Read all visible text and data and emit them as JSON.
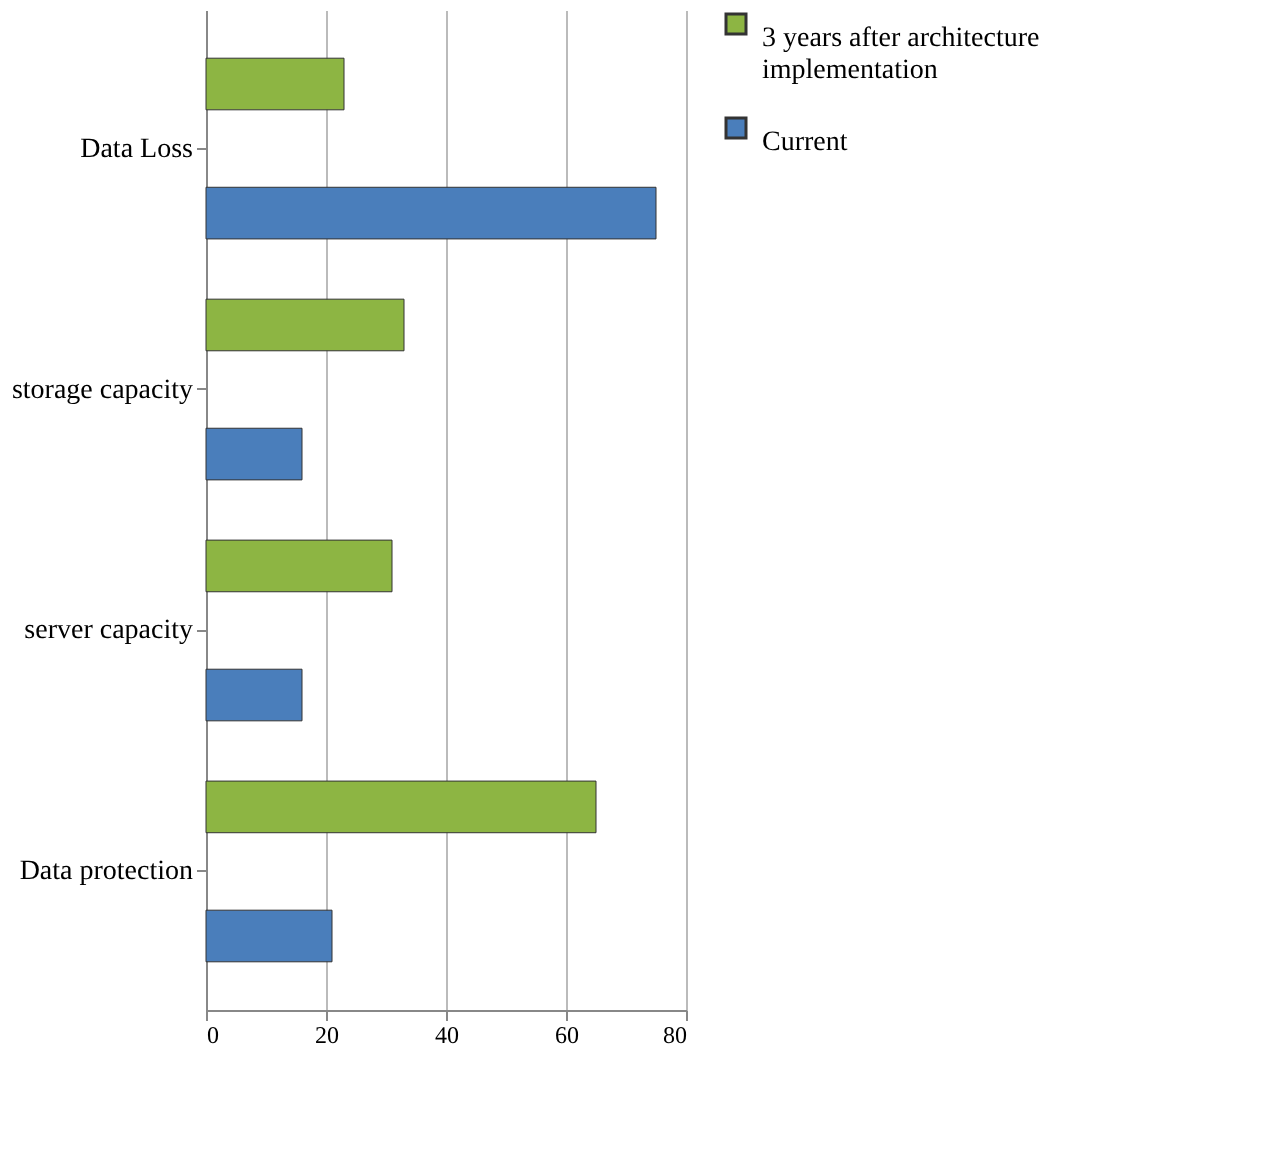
{
  "chart_data": {
    "type": "bar",
    "orientation": "horizontal",
    "categories": [
      "Data Loss",
      "storage capacity",
      "server capacity",
      "Data protection"
    ],
    "series": [
      {
        "name": "3 years after architecture implementation",
        "color": "#8db543",
        "values": [
          23,
          33,
          31,
          65
        ]
      },
      {
        "name": "Current",
        "color": "#4a7ebb",
        "values": [
          75,
          16,
          16,
          21
        ]
      }
    ],
    "xlim": [
      0,
      80
    ],
    "xticks": [
      0,
      20,
      40,
      60,
      80
    ],
    "grid": "x",
    "legend": "right"
  }
}
